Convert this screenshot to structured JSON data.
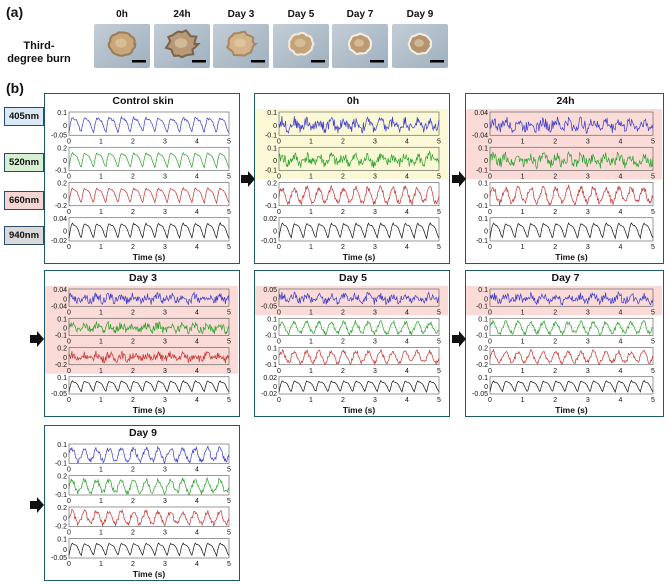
{
  "panel_a": {
    "label": "(a)",
    "row_label_line1": "Third-",
    "row_label_line2": "degree burn",
    "timepoints": [
      "0h",
      "24h",
      "Day 3",
      "Day 5",
      "Day 7",
      "Day 9"
    ]
  },
  "panel_b": {
    "label": "(b)"
  },
  "legend": [
    {
      "label": "405nm",
      "color": "#dbe9f7"
    },
    {
      "label": "520nm",
      "color": "#d7f0d3"
    },
    {
      "label": "660nm",
      "color": "#f6d6d3"
    },
    {
      "label": "940nm",
      "color": "#d9d9d9"
    }
  ],
  "colors": {
    "405nm": "#3a3acb",
    "520nm": "#2aa02a",
    "660nm": "#c83232",
    "940nm": "#111111",
    "frame": "#1e5a6a",
    "highlight_yellow": "#fbf9d5",
    "highlight_red": "#fadbd8"
  },
  "chart_data": [
    {
      "type": "line",
      "title": "Control skin",
      "xlabel": "Time (s)",
      "x_ticks": [
        "0",
        "1",
        "2",
        "3",
        "4",
        "5"
      ],
      "xlim": [
        0,
        5
      ],
      "series": [
        {
          "name": "405nm",
          "y_ticks": [
            "0.1",
            "0",
            "-0.05"
          ],
          "pulse_rate_hz": 2.6,
          "highlight": "none"
        },
        {
          "name": "520nm",
          "y_ticks": [
            "0.2",
            "0",
            "-0.1"
          ],
          "pulse_rate_hz": 2.6,
          "highlight": "none"
        },
        {
          "name": "660nm",
          "y_ticks": [
            "0.2",
            "0",
            "-0.2"
          ],
          "pulse_rate_hz": 2.6,
          "highlight": "none"
        },
        {
          "name": "940nm",
          "y_ticks": [
            "0.04",
            "0",
            "-0.02"
          ],
          "pulse_rate_hz": 2.6,
          "highlight": "none"
        }
      ]
    },
    {
      "type": "line",
      "title": "0h",
      "xlabel": "Time (s)",
      "x_ticks": [
        "0",
        "1",
        "2",
        "3",
        "4",
        "5"
      ],
      "xlim": [
        0,
        5
      ],
      "series": [
        {
          "name": "405nm",
          "y_ticks": [
            "0.1",
            "0",
            "-0.1"
          ],
          "pulse_rate_hz": 2.6,
          "highlight": "yellow"
        },
        {
          "name": "520nm",
          "y_ticks": [
            "0.1",
            "0",
            "-0.1"
          ],
          "pulse_rate_hz": 2.6,
          "highlight": "yellow"
        },
        {
          "name": "660nm",
          "y_ticks": [
            "0.2",
            "0",
            "-0.1"
          ],
          "pulse_rate_hz": 2.6,
          "highlight": "none"
        },
        {
          "name": "940nm",
          "y_ticks": [
            "0.02",
            "0",
            "-0.01"
          ],
          "pulse_rate_hz": 2.6,
          "highlight": "none"
        }
      ]
    },
    {
      "type": "line",
      "title": "24h",
      "xlabel": "Time (s)",
      "x_ticks": [
        "0",
        "1",
        "2",
        "3",
        "4",
        "5"
      ],
      "xlim": [
        0,
        5
      ],
      "series": [
        {
          "name": "405nm",
          "y_ticks": [
            "0.04",
            "0",
            "-0.04"
          ],
          "pulse_rate_hz": 2.6,
          "highlight": "red"
        },
        {
          "name": "520nm",
          "y_ticks": [
            "0.1",
            "0",
            "-0.1"
          ],
          "pulse_rate_hz": 2.6,
          "highlight": "red"
        },
        {
          "name": "660nm",
          "y_ticks": [
            "0.1",
            "0",
            "-0.1"
          ],
          "pulse_rate_hz": 2.6,
          "highlight": "none"
        },
        {
          "name": "940nm",
          "y_ticks": [
            "0.1",
            "0",
            "-0.1"
          ],
          "pulse_rate_hz": 2.6,
          "highlight": "none"
        }
      ]
    },
    {
      "type": "line",
      "title": "Day 3",
      "xlabel": "Time (s)",
      "x_ticks": [
        "0",
        "1",
        "2",
        "3",
        "4",
        "5"
      ],
      "xlim": [
        0,
        5
      ],
      "series": [
        {
          "name": "405nm",
          "y_ticks": [
            "0.04",
            "0",
            "-0.04"
          ],
          "pulse_rate_hz": 2.6,
          "highlight": "red"
        },
        {
          "name": "520nm",
          "y_ticks": [
            "0.1",
            "0",
            "-0.1"
          ],
          "pulse_rate_hz": 2.6,
          "highlight": "red"
        },
        {
          "name": "660nm",
          "y_ticks": [
            "0.2",
            "0",
            "-0.2"
          ],
          "pulse_rate_hz": 2.6,
          "highlight": "red"
        },
        {
          "name": "940nm",
          "y_ticks": [
            "0.1",
            "0",
            "-0.05"
          ],
          "pulse_rate_hz": 2.6,
          "highlight": "none"
        }
      ]
    },
    {
      "type": "line",
      "title": "Day 5",
      "xlabel": "Time (s)",
      "x_ticks": [
        "0",
        "1",
        "2",
        "3",
        "4",
        "5"
      ],
      "xlim": [
        0,
        5
      ],
      "series": [
        {
          "name": "405nm",
          "y_ticks": [
            "0.05",
            "0",
            "-0.05"
          ],
          "pulse_rate_hz": 2.6,
          "highlight": "red"
        },
        {
          "name": "520nm",
          "y_ticks": [
            "0.1",
            "0",
            "-0.1"
          ],
          "pulse_rate_hz": 2.6,
          "highlight": "none"
        },
        {
          "name": "660nm",
          "y_ticks": [
            "0.1",
            "0",
            "-0.1"
          ],
          "pulse_rate_hz": 2.6,
          "highlight": "none"
        },
        {
          "name": "940nm",
          "y_ticks": [
            "0.02",
            "0",
            "-0.02"
          ],
          "pulse_rate_hz": 2.6,
          "highlight": "none"
        }
      ]
    },
    {
      "type": "line",
      "title": "Day 7",
      "xlabel": "Time (s)",
      "x_ticks": [
        "0",
        "1",
        "2",
        "3",
        "4",
        "5"
      ],
      "xlim": [
        0,
        5
      ],
      "series": [
        {
          "name": "405nm",
          "y_ticks": [
            "0.1",
            "0",
            "-0.1"
          ],
          "pulse_rate_hz": 2.6,
          "highlight": "red"
        },
        {
          "name": "520nm",
          "y_ticks": [
            "0.1",
            "0",
            "-0.1"
          ],
          "pulse_rate_hz": 2.6,
          "highlight": "none"
        },
        {
          "name": "660nm",
          "y_ticks": [
            "0.2",
            "0",
            "-0.2"
          ],
          "pulse_rate_hz": 2.6,
          "highlight": "none"
        },
        {
          "name": "940nm",
          "y_ticks": [
            "0.1",
            "0",
            "-0.05"
          ],
          "pulse_rate_hz": 2.6,
          "highlight": "none"
        }
      ]
    },
    {
      "type": "line",
      "title": "Day 9",
      "xlabel": "Time (s)",
      "x_ticks": [
        "0",
        "1",
        "2",
        "3",
        "4",
        "5"
      ],
      "xlim": [
        0,
        5
      ],
      "series": [
        {
          "name": "405nm",
          "y_ticks": [
            "0.1",
            "0",
            "-0.1"
          ],
          "pulse_rate_hz": 2.6,
          "highlight": "none"
        },
        {
          "name": "520nm",
          "y_ticks": [
            "0.2",
            "0",
            "-0.1"
          ],
          "pulse_rate_hz": 2.6,
          "highlight": "none"
        },
        {
          "name": "660nm",
          "y_ticks": [
            "0.2",
            "0",
            "-0.2"
          ],
          "pulse_rate_hz": 2.6,
          "highlight": "none"
        },
        {
          "name": "940nm",
          "y_ticks": [
            "0.1",
            "0",
            "-0.05"
          ],
          "pulse_rate_hz": 2.6,
          "highlight": "none"
        }
      ]
    }
  ]
}
